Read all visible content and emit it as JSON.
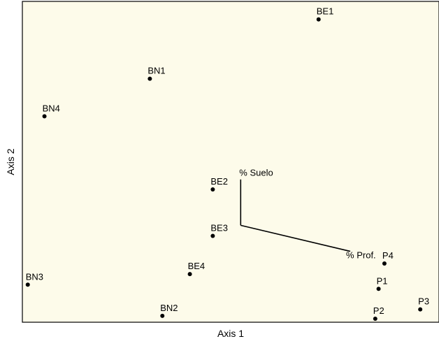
{
  "chart_data": {
    "type": "scatter",
    "title": "",
    "xlabel": "Axis 1",
    "ylabel": "Axis 2",
    "xlim": [
      0,
      100
    ],
    "ylim": [
      0,
      100
    ],
    "grid": false,
    "legend": "none",
    "colors": {
      "plot_background": "#fdfbea",
      "plot_border": "#000000",
      "point": "#000000",
      "vector": "#000000"
    },
    "points": [
      {
        "label": "BE1",
        "x": 71.1,
        "y": 94.4
      },
      {
        "label": "BN1",
        "x": 30.6,
        "y": 75.9
      },
      {
        "label": "BN4",
        "x": 5.3,
        "y": 64.2
      },
      {
        "label": "BE2",
        "x": 45.7,
        "y": 41.4
      },
      {
        "label": "BE3",
        "x": 45.7,
        "y": 26.9
      },
      {
        "label": "P4",
        "x": 86.9,
        "y": 18.3
      },
      {
        "label": "BE4",
        "x": 40.2,
        "y": 15.0
      },
      {
        "label": "BN3",
        "x": 1.3,
        "y": 11.7
      },
      {
        "label": "P1",
        "x": 85.5,
        "y": 10.4
      },
      {
        "label": "P3",
        "x": 95.5,
        "y": 4.0
      },
      {
        "label": "BN2",
        "x": 33.6,
        "y": 2.0
      },
      {
        "label": "P2",
        "x": 84.7,
        "y": 1.1
      }
    ],
    "vectors": [
      {
        "label": "% Suelo",
        "x0": 52.4,
        "y0": 30.2,
        "x1": 52.4,
        "y1": 44.5
      },
      {
        "label": "% Prof.",
        "x0": 52.4,
        "y0": 30.2,
        "x1": 78.7,
        "y1": 22.1
      }
    ]
  }
}
